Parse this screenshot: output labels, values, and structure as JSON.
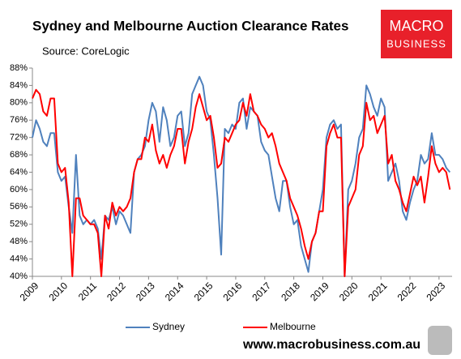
{
  "chart_data": {
    "type": "line",
    "title": "Sydney and Melbourne Auction Clearance Rates",
    "subtitle": "Source: CoreLogic",
    "x": [
      2009,
      2009.125,
      2009.25,
      2009.375,
      2009.5,
      2009.625,
      2009.75,
      2009.875,
      2010,
      2010.125,
      2010.25,
      2010.375,
      2010.5,
      2010.625,
      2010.75,
      2010.875,
      2011,
      2011.125,
      2011.25,
      2011.375,
      2011.5,
      2011.625,
      2011.75,
      2011.875,
      2012,
      2012.125,
      2012.25,
      2012.375,
      2012.5,
      2012.625,
      2012.75,
      2012.875,
      2013,
      2013.125,
      2013.25,
      2013.375,
      2013.5,
      2013.625,
      2013.75,
      2013.875,
      2014,
      2014.125,
      2014.25,
      2014.375,
      2014.5,
      2014.625,
      2014.75,
      2014.875,
      2015,
      2015.125,
      2015.25,
      2015.375,
      2015.5,
      2015.625,
      2015.75,
      2015.875,
      2016,
      2016.125,
      2016.25,
      2016.375,
      2016.5,
      2016.625,
      2016.75,
      2016.875,
      2017,
      2017.125,
      2017.25,
      2017.375,
      2017.5,
      2017.625,
      2017.75,
      2017.875,
      2018,
      2018.125,
      2018.25,
      2018.375,
      2018.5,
      2018.625,
      2018.75,
      2018.875,
      2019,
      2019.125,
      2019.25,
      2019.375,
      2019.5,
      2019.625,
      2019.75,
      2019.875,
      2020,
      2020.125,
      2020.25,
      2020.375,
      2020.5,
      2020.625,
      2020.75,
      2020.875,
      2021,
      2021.125,
      2021.25,
      2021.375,
      2021.5,
      2021.625,
      2021.75,
      2021.875,
      2022,
      2022.125,
      2022.25,
      2022.375,
      2022.5,
      2022.625,
      2022.75,
      2022.875,
      2023,
      2023.125,
      2023.25,
      2023.375
    ],
    "series": [
      {
        "name": "Sydney",
        "color": "#4f81bd",
        "values": [
          72,
          76,
          74,
          71,
          70,
          73,
          73,
          64,
          62,
          63,
          56,
          50,
          68,
          54,
          52,
          53,
          52,
          53,
          51,
          44,
          54,
          53,
          56,
          52,
          55,
          54,
          52,
          50,
          64,
          67,
          68,
          70,
          76,
          80,
          78,
          71,
          79,
          76,
          70,
          72,
          77,
          78,
          70,
          73,
          82,
          84,
          86,
          84,
          78,
          76,
          68,
          58,
          45,
          74,
          73,
          75,
          74,
          80,
          81,
          74,
          79,
          78,
          77,
          71,
          69,
          68,
          63,
          58,
          55,
          62,
          62,
          56,
          52,
          53,
          47,
          44,
          41,
          48,
          50,
          55,
          60,
          72,
          75,
          76,
          74,
          75,
          40,
          60,
          62,
          66,
          72,
          74,
          84,
          82,
          79,
          77,
          81,
          79,
          62,
          64,
          66,
          62,
          55,
          53,
          57,
          60,
          62,
          68,
          66,
          67,
          73,
          68,
          68,
          67,
          65,
          64
        ]
      },
      {
        "name": "Melbourne",
        "color": "#ff0000",
        "values": [
          81,
          83,
          82,
          78,
          77,
          81,
          81,
          66,
          64,
          65,
          57,
          40,
          58,
          58,
          54,
          53,
          52,
          52,
          50,
          40,
          54,
          51,
          57,
          54,
          56,
          55,
          56,
          58,
          64,
          67,
          67,
          72,
          71,
          75,
          69,
          66,
          68,
          65,
          68,
          70,
          74,
          74,
          66,
          71,
          74,
          79,
          82,
          79,
          76,
          77,
          72,
          65,
          66,
          72,
          71,
          73,
          75,
          76,
          80,
          77,
          82,
          78,
          77,
          75,
          74,
          72,
          73,
          70,
          66,
          64,
          62,
          58,
          56,
          54,
          51,
          47,
          44,
          48,
          50,
          55,
          55,
          70,
          73,
          75,
          72,
          72,
          40,
          56,
          58,
          60,
          68,
          70,
          80,
          76,
          77,
          73,
          75,
          77,
          66,
          68,
          62,
          60,
          57,
          55,
          59,
          63,
          61,
          63,
          57,
          63,
          70,
          66,
          64,
          65,
          64,
          60
        ]
      }
    ],
    "xlim": [
      2009,
      2023.45
    ],
    "xticks": [
      2009,
      2010,
      2011,
      2012,
      2013,
      2014,
      2015,
      2016,
      2017,
      2018,
      2019,
      2020,
      2021,
      2022,
      2023
    ],
    "ylim": [
      40,
      88
    ],
    "yticks": [
      {
        "value": 40,
        "label": "40%"
      },
      {
        "value": 44,
        "label": "44%"
      },
      {
        "value": 48,
        "label": "48%"
      },
      {
        "value": 52,
        "label": "52%"
      },
      {
        "value": 56,
        "label": "56%"
      },
      {
        "value": 60,
        "label": "60%"
      },
      {
        "value": 64,
        "label": "64%"
      },
      {
        "value": 68,
        "label": "68%"
      },
      {
        "value": 72,
        "label": "72%"
      },
      {
        "value": 76,
        "label": "76%"
      },
      {
        "value": 80,
        "label": "80%"
      },
      {
        "value": 84,
        "label": "84%"
      },
      {
        "value": 88,
        "label": "88%"
      }
    ],
    "grid": false,
    "legend": "bottom"
  },
  "brand": {
    "logo_top": "MACRO",
    "logo_bottom": "BUSINESS",
    "website": "www.macrobusiness.com.au"
  }
}
